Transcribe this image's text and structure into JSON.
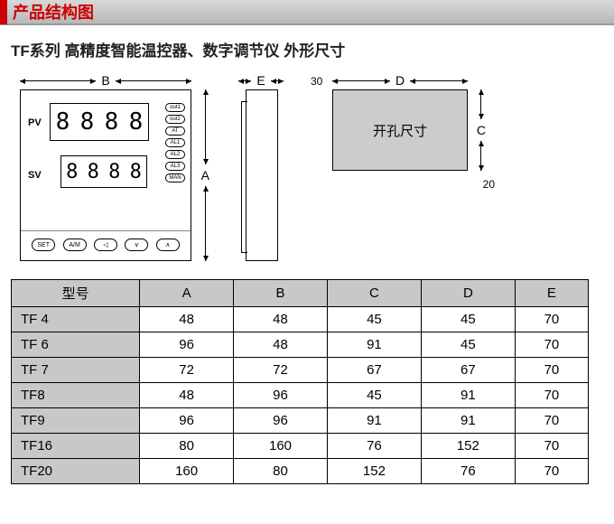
{
  "header": {
    "title": "产品结构图"
  },
  "subtitle": "TF系列 高精度智能温控器、数字调节仪 外形尺寸",
  "device": {
    "pv_label": "PV",
    "sv_label": "SV",
    "digit": "8",
    "indicators": [
      "out1",
      "out2",
      "AT",
      "AL1",
      "AL2",
      "AL3",
      "MAN"
    ],
    "buttons": [
      "SET",
      "A/M",
      "◁",
      "∨",
      "∧"
    ]
  },
  "dims": {
    "B": "B",
    "A": "A",
    "E": "E",
    "D": "D",
    "C": "C",
    "left_small": "30",
    "bottom_small": "20",
    "cutout_label": "开孔尺寸"
  },
  "table": {
    "headers": [
      "型号",
      "A",
      "B",
      "C",
      "D",
      "E"
    ],
    "rows": [
      [
        "TF 4",
        "48",
        "48",
        "45",
        "45",
        "70"
      ],
      [
        "TF 6",
        "96",
        "48",
        "91",
        "45",
        "70"
      ],
      [
        "TF 7",
        "72",
        "72",
        "67",
        "67",
        "70"
      ],
      [
        "TF8",
        "48",
        "96",
        "45",
        "91",
        "70"
      ],
      [
        "TF9",
        "96",
        "96",
        "91",
        "91",
        "70"
      ],
      [
        "TF16",
        "80",
        "160",
        "76",
        "152",
        "70"
      ],
      [
        "TF20",
        "160",
        "80",
        "152",
        "76",
        "70"
      ]
    ]
  },
  "colors": {
    "accent": "#c00",
    "header_bg_top": "#d8d8d8",
    "header_bg_bottom": "#b8b8b8",
    "cell_gray": "#c8c8c8",
    "border": "#000"
  }
}
